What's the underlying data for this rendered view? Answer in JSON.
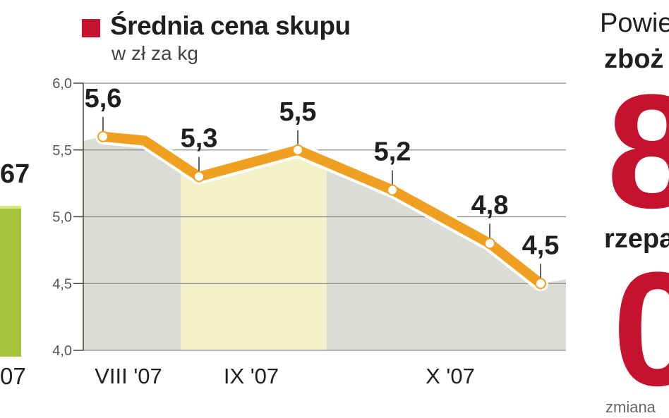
{
  "chart_data": {
    "type": "line",
    "title": "Średnia cena skupu",
    "subtitle": "w zł za kg",
    "ylim": [
      4.0,
      6.0
    ],
    "yticks": [
      "4,0",
      "4,5",
      "5,0",
      "5,5",
      "6,0"
    ],
    "ytick_values": [
      4.0,
      4.5,
      5.0,
      5.5,
      6.0
    ],
    "month_labels": [
      "VIII '07",
      "IX '07",
      "X '07"
    ],
    "series": [
      {
        "values": [
          5.6,
          5.3,
          5.5,
          5.2,
          4.8,
          4.5
        ],
        "labels": [
          "5,6",
          "5,3",
          "5,5",
          "5,2",
          "4,8",
          "4,5"
        ]
      }
    ],
    "grid": true,
    "legend": "top-left",
    "colors": {
      "line": "#f0a020",
      "line_outline": "#ffffff",
      "legend_square": "#c4122f",
      "area_grey": "#dcdcd6",
      "area_highlight": "#f3f1c9",
      "grid": "#8a8a8a"
    }
  },
  "left_panel": {
    "value": "67",
    "x_label": "07",
    "bar_color": "#a9c23b"
  },
  "right_panel": {
    "line1": "Powie",
    "line2": "zboż",
    "big1": "8",
    "line3": "rzepa",
    "big2": "0",
    "footer": "zmiana"
  }
}
